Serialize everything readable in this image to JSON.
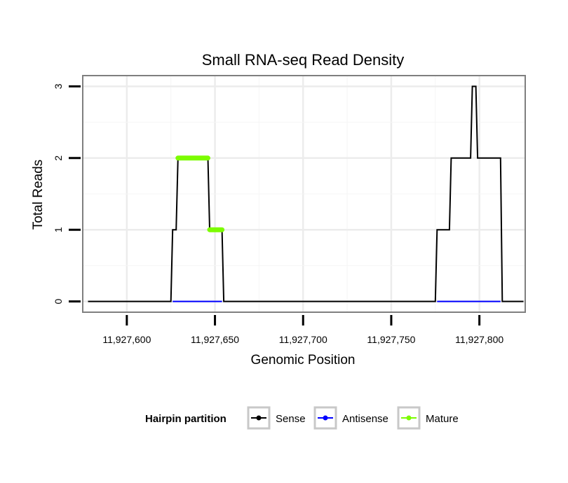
{
  "chart_data": {
    "type": "line",
    "title": "Small RNA-seq Read Density",
    "xlabel": "Genomic Position",
    "ylabel": "Total Reads",
    "xlim": [
      11927575,
      11927826
    ],
    "ylim": [
      -0.15,
      3.15
    ],
    "x_ticks": [
      11927600,
      11927650,
      11927700,
      11927750,
      11927800
    ],
    "x_tick_labels": [
      "11,927,600",
      "11,927,650",
      "11,927,700",
      "11,927,750",
      "11,927,800"
    ],
    "y_ticks": [
      0,
      1,
      2,
      3
    ],
    "y_tick_labels": [
      "0",
      "1",
      "2",
      "3"
    ],
    "grid": true,
    "legend": {
      "title": "Hairpin partition",
      "position": "bottom",
      "entries": [
        {
          "label": "Sense",
          "color": "#000000"
        },
        {
          "label": "Antisense",
          "color": "#0000ff"
        },
        {
          "label": "Mature",
          "color": "#7cfc00"
        }
      ]
    },
    "series": [
      {
        "name": "Sense",
        "color": "#000000",
        "x": [
          11927578,
          11927625,
          11927626,
          11927628,
          11927629,
          11927646,
          11927647,
          11927654,
          11927655,
          11927775,
          11927776,
          11927783,
          11927784,
          11927795,
          11927796,
          11927798,
          11927799,
          11927812,
          11927813,
          11927825
        ],
        "y": [
          0,
          0,
          1,
          1,
          2,
          2,
          1,
          1,
          0,
          0,
          1,
          1,
          2,
          2,
          3,
          3,
          2,
          2,
          0,
          0
        ]
      },
      {
        "name": "Antisense",
        "color": "#0000ff",
        "segments": [
          {
            "x": [
              11927626,
              11927654
            ],
            "y": [
              0,
              0
            ]
          },
          {
            "x": [
              11927776,
              11927812
            ],
            "y": [
              0,
              0
            ]
          }
        ]
      },
      {
        "name": "Mature",
        "color": "#7cfc00",
        "segments": [
          {
            "x": [
              11927629,
              11927646
            ],
            "y": [
              2,
              2
            ]
          },
          {
            "x": [
              11927647,
              11927654
            ],
            "y": [
              1,
              1
            ]
          }
        ]
      }
    ]
  }
}
